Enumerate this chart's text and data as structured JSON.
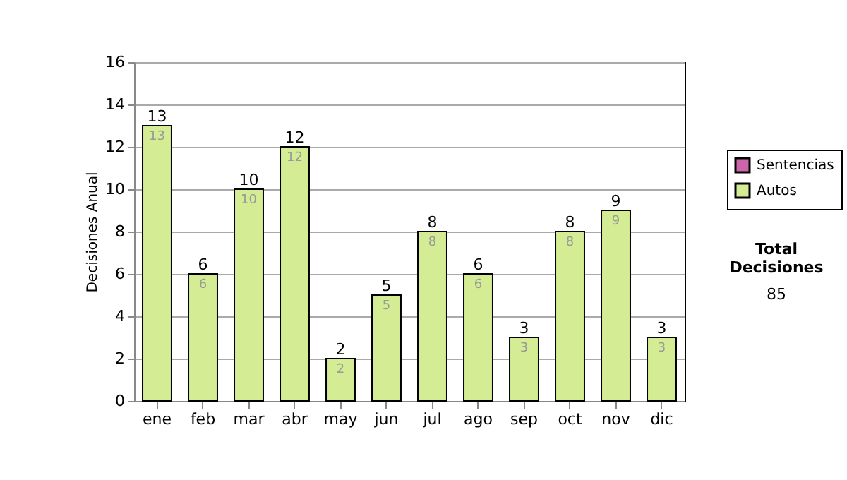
{
  "chart_data": {
    "type": "bar",
    "stacked": true,
    "ylabel": "Decisiones Anual",
    "categories": [
      "ene",
      "feb",
      "mar",
      "abr",
      "may",
      "jun",
      "jul",
      "ago",
      "sep",
      "oct",
      "nov",
      "dic"
    ],
    "series": [
      {
        "name": "Sentencias",
        "color": "#cc66aa",
        "values": [
          0,
          0,
          0,
          0,
          0,
          0,
          0,
          0,
          0,
          0,
          0,
          0
        ]
      },
      {
        "name": "Autos",
        "color": "#d4ec94",
        "values": [
          13,
          6,
          10,
          12,
          2,
          5,
          8,
          6,
          3,
          8,
          9,
          3
        ],
        "value_labels": [
          "13",
          "6",
          "10",
          "12",
          "2",
          "5",
          "8",
          "6",
          "3",
          "8",
          "9",
          "3"
        ]
      }
    ],
    "totals": [
      "13",
      "6",
      "10",
      "12",
      "2",
      "5",
      "8",
      "6",
      "3",
      "8",
      "9",
      "3"
    ],
    "ylim": [
      0,
      16
    ],
    "yticks": [
      0,
      2,
      4,
      6,
      8,
      10,
      12,
      14,
      16
    ],
    "grid": "y",
    "legend": "right",
    "annotations": [
      "Total Decisiones",
      "85"
    ]
  }
}
